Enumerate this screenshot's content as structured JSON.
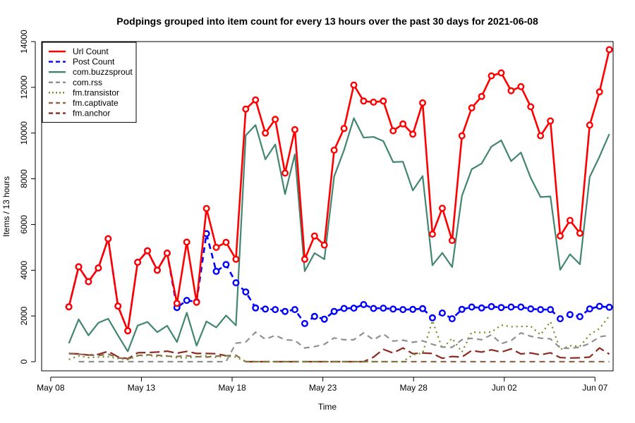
{
  "chart_data": {
    "type": "line",
    "title": "Podpings grouped into item count for every 13 hours  over the past 30 days for 2021-06-08",
    "xlabel": "Time",
    "ylabel": "Items / 13 hours",
    "xlim": [
      "2021-05-07T12:00",
      "2021-06-08T00:00"
    ],
    "ylim": [
      -400,
      14000
    ],
    "x_ticks": [
      {
        "date": "2021-05-08",
        "label": "May 08"
      },
      {
        "date": "2021-05-13",
        "label": "May 13"
      },
      {
        "date": "2021-05-18",
        "label": "May 18"
      },
      {
        "date": "2021-05-23",
        "label": "May 23"
      },
      {
        "date": "2021-05-28",
        "label": "May 28"
      },
      {
        "date": "2021-06-02",
        "label": "Jun 02"
      },
      {
        "date": "2021-06-07",
        "label": "Jun 07"
      }
    ],
    "y_ticks": [
      0,
      2000,
      4000,
      6000,
      8000,
      10000,
      12000,
      14000
    ],
    "grid": false,
    "legend_position": "top-left",
    "x": [
      "2021-05-09T00:00",
      "2021-05-09T13:00",
      "2021-05-10T02:00",
      "2021-05-10T15:00",
      "2021-05-11T04:00",
      "2021-05-11T17:00",
      "2021-05-12T06:00",
      "2021-05-12T19:00",
      "2021-05-13T08:00",
      "2021-05-13T21:00",
      "2021-05-14T10:00",
      "2021-05-14T23:00",
      "2021-05-15T12:00",
      "2021-05-16T01:00",
      "2021-05-16T14:00",
      "2021-05-17T03:00",
      "2021-05-17T16:00",
      "2021-05-18T05:00",
      "2021-05-18T18:00",
      "2021-05-19T07:00",
      "2021-05-19T20:00",
      "2021-05-20T09:00",
      "2021-05-20T22:00",
      "2021-05-21T11:00",
      "2021-05-22T00:00",
      "2021-05-22T13:00",
      "2021-05-23T02:00",
      "2021-05-23T15:00",
      "2021-05-24T04:00",
      "2021-05-24T17:00",
      "2021-05-25T06:00",
      "2021-05-25T19:00",
      "2021-05-26T08:00",
      "2021-05-26T21:00",
      "2021-05-27T10:00",
      "2021-05-27T23:00",
      "2021-05-28T12:00",
      "2021-05-29T01:00",
      "2021-05-29T14:00",
      "2021-05-30T03:00",
      "2021-05-30T16:00",
      "2021-05-31T05:00",
      "2021-05-31T18:00",
      "2021-06-01T07:00",
      "2021-06-01T20:00",
      "2021-06-02T09:00",
      "2021-06-02T22:00",
      "2021-06-03T11:00",
      "2021-06-04T00:00",
      "2021-06-04T13:00",
      "2021-06-05T02:00",
      "2021-06-05T15:00",
      "2021-06-06T04:00",
      "2021-06-06T17:00",
      "2021-06-07T06:00",
      "2021-06-07T19:00"
    ],
    "series": [
      {
        "name": "Url Count",
        "color": "#ff0000",
        "dash": "solid",
        "markers": true,
        "values": [
          2400,
          4150,
          3500,
          4100,
          5380,
          2430,
          1350,
          4350,
          4850,
          4000,
          4750,
          2550,
          5230,
          2600,
          6700,
          5000,
          5220,
          4480,
          11050,
          11450,
          10000,
          10600,
          8250,
          10150,
          4480,
          5500,
          5100,
          9250,
          10200,
          12100,
          11400,
          11350,
          11400,
          10100,
          10400,
          9950,
          11320,
          5580,
          6710,
          5300,
          9880,
          11100,
          11600,
          12500,
          12630,
          11850,
          12030,
          11150,
          9880,
          10530,
          5500,
          6180,
          5620,
          10350,
          11800,
          13650
        ]
      },
      {
        "name": "Post Count",
        "color": "#0000ff",
        "dash": "dashed",
        "markers": true,
        "values": [
          2400,
          4150,
          3500,
          4100,
          5380,
          2430,
          1350,
          4350,
          4850,
          4000,
          4750,
          2370,
          2680,
          2620,
          5600,
          3950,
          4250,
          3450,
          3050,
          2350,
          2300,
          2280,
          2200,
          2280,
          1670,
          1980,
          1860,
          2200,
          2330,
          2340,
          2500,
          2330,
          2340,
          2300,
          2280,
          2290,
          2320,
          1920,
          2130,
          1880,
          2290,
          2390,
          2350,
          2410,
          2370,
          2390,
          2390,
          2310,
          2280,
          2280,
          1880,
          2060,
          1970,
          2310,
          2420,
          2380
        ]
      },
      {
        "name": "com.buzzsprout",
        "color": "#428571",
        "dash": "solid",
        "markers": false,
        "values": [
          800,
          1850,
          1150,
          1700,
          1880,
          1150,
          450,
          1580,
          1740,
          1290,
          1570,
          860,
          2140,
          700,
          1760,
          1500,
          2020,
          1590,
          9900,
          10350,
          8850,
          9500,
          7330,
          9070,
          3960,
          4750,
          4480,
          8100,
          9250,
          10650,
          9800,
          9830,
          9650,
          8730,
          8750,
          7490,
          8120,
          4220,
          4760,
          4140,
          7250,
          8420,
          8670,
          9410,
          9680,
          8770,
          9150,
          8040,
          7200,
          7230,
          4020,
          4700,
          4260,
          8080,
          8970,
          9960
        ]
      },
      {
        "name": "com.rss",
        "color": "#909090",
        "dash": "dashed",
        "markers": false,
        "values": [
          null,
          0,
          0,
          0,
          0,
          0,
          0,
          0,
          0,
          0,
          0,
          0,
          0,
          0,
          0,
          0,
          0,
          810,
          860,
          1290,
          980,
          1150,
          960,
          930,
          600,
          660,
          760,
          1040,
          960,
          960,
          1260,
          960,
          1210,
          900,
          940,
          850,
          910,
          760,
          640,
          630,
          960,
          1020,
          960,
          1180,
          790,
          920,
          1260,
          1110,
          1030,
          1000,
          600,
          580,
          640,
          800,
          1090,
          1150
        ]
      },
      {
        "name": "fm.transistor",
        "color": "#6b8e23",
        "dash": "dotted",
        "markers": false,
        "values": [
          100,
          250,
          180,
          200,
          220,
          140,
          90,
          250,
          280,
          230,
          260,
          170,
          170,
          210,
          260,
          190,
          250,
          200,
          0,
          0,
          0,
          0,
          0,
          0,
          0,
          0,
          0,
          0,
          0,
          0,
          0,
          0,
          0,
          0,
          0,
          300,
          380,
          1800,
          570,
          1020,
          420,
          1300,
          1270,
          1300,
          1600,
          1530,
          1540,
          1550,
          1180,
          1750,
          530,
          700,
          670,
          1180,
          1450,
          2000
        ]
      },
      {
        "name": "fm.captivate",
        "color": "#8b6a4f",
        "dash": "dashed",
        "markers": false,
        "values": [
          350,
          330,
          290,
          270,
          330,
          170,
          120,
          270,
          300,
          280,
          240,
          230,
          260,
          220,
          200,
          240,
          260,
          280,
          0,
          0,
          0,
          0,
          0,
          0,
          0,
          0,
          0,
          0,
          0,
          0,
          0,
          0,
          0,
          0,
          0,
          0,
          0,
          0,
          0,
          0,
          0,
          0,
          0,
          0,
          0,
          0,
          0,
          0,
          0,
          0,
          0,
          0,
          0,
          0,
          0,
          0
        ]
      },
      {
        "name": "fm.anchor",
        "color": "#8b2a20",
        "dash": "longdash",
        "markers": false,
        "values": [
          360,
          340,
          290,
          320,
          450,
          210,
          130,
          390,
          400,
          420,
          460,
          370,
          450,
          360,
          360,
          350,
          260,
          null,
          0,
          0,
          0,
          0,
          0,
          0,
          0,
          0,
          0,
          0,
          0,
          0,
          0,
          200,
          540,
          380,
          600,
          350,
          380,
          360,
          150,
          230,
          200,
          490,
          420,
          520,
          420,
          560,
          340,
          380,
          300,
          390,
          180,
          160,
          170,
          200,
          600,
          330
        ]
      }
    ]
  }
}
